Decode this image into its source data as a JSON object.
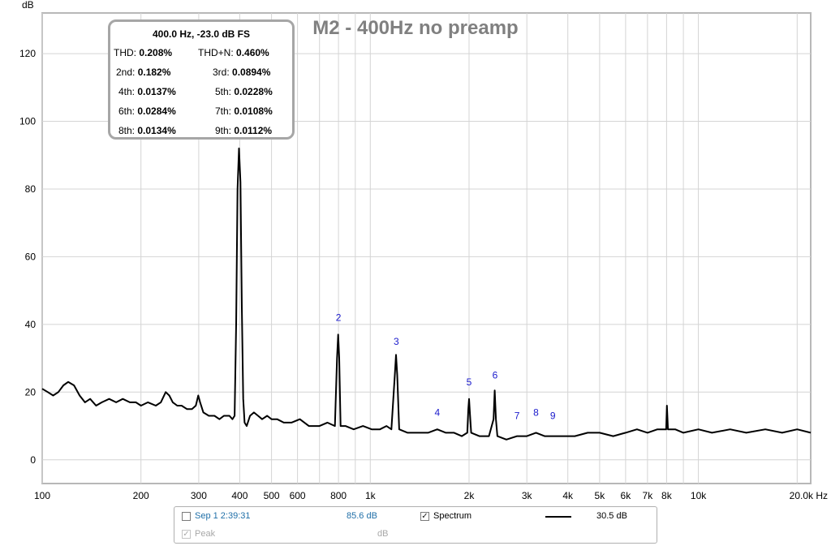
{
  "chart_data": {
    "type": "line",
    "title": "M2 - 400Hz no preamp",
    "ylabel": "dB",
    "x_unit": "Hz",
    "x_scale": "log",
    "xlim": [
      100,
      22000
    ],
    "ylim": [
      -7,
      132
    ],
    "grid": true,
    "y_ticks": [
      "0",
      "20",
      "40",
      "60",
      "80",
      "100",
      "120"
    ],
    "y_tick_values": [
      0,
      20,
      40,
      60,
      80,
      100,
      120
    ],
    "x_ticks": [
      {
        "v": 100,
        "label": "100"
      },
      {
        "v": 200,
        "label": "200"
      },
      {
        "v": 300,
        "label": "300"
      },
      {
        "v": 400,
        "label": "400"
      },
      {
        "v": 500,
        "label": "500"
      },
      {
        "v": 600,
        "label": "600"
      },
      {
        "v": 800,
        "label": "800"
      },
      {
        "v": 1000,
        "label": "1k"
      },
      {
        "v": 2000,
        "label": "2k"
      },
      {
        "v": 3000,
        "label": "3k"
      },
      {
        "v": 4000,
        "label": "4k"
      },
      {
        "v": 5000,
        "label": "5k"
      },
      {
        "v": 6000,
        "label": "6k"
      },
      {
        "v": 7000,
        "label": "7k"
      },
      {
        "v": 8000,
        "label": "8k"
      },
      {
        "v": 10000,
        "label": "10k"
      },
      {
        "v": 20000,
        "label": "20.0k Hz"
      }
    ],
    "x_grid_values": [
      100,
      200,
      300,
      400,
      500,
      600,
      700,
      800,
      900,
      1000,
      2000,
      3000,
      4000,
      5000,
      6000,
      7000,
      8000,
      9000,
      10000,
      20000
    ],
    "series": [
      {
        "color": "#000000",
        "points": [
          [
            100,
            21
          ],
          [
            104,
            20
          ],
          [
            108,
            19
          ],
          [
            112,
            20
          ],
          [
            116,
            22
          ],
          [
            120,
            23
          ],
          [
            125,
            22
          ],
          [
            130,
            19
          ],
          [
            135,
            17
          ],
          [
            140,
            18
          ],
          [
            146,
            16
          ],
          [
            152,
            17
          ],
          [
            160,
            18
          ],
          [
            168,
            17
          ],
          [
            176,
            18
          ],
          [
            185,
            17
          ],
          [
            193,
            17
          ],
          [
            200,
            16
          ],
          [
            210,
            17
          ],
          [
            222,
            16
          ],
          [
            230,
            17
          ],
          [
            238,
            20
          ],
          [
            244,
            19
          ],
          [
            250,
            17
          ],
          [
            258,
            16
          ],
          [
            266,
            16
          ],
          [
            276,
            15
          ],
          [
            286,
            15
          ],
          [
            294,
            16
          ],
          [
            299,
            19
          ],
          [
            303,
            17
          ],
          [
            310,
            14
          ],
          [
            322,
            13
          ],
          [
            335,
            13
          ],
          [
            347,
            12
          ],
          [
            358,
            13
          ],
          [
            372,
            13
          ],
          [
            380,
            12
          ],
          [
            386,
            13
          ],
          [
            390,
            40
          ],
          [
            394,
            80
          ],
          [
            398,
            92
          ],
          [
            402,
            82
          ],
          [
            406,
            45
          ],
          [
            410,
            18
          ],
          [
            414,
            11
          ],
          [
            420,
            10
          ],
          [
            430,
            13
          ],
          [
            442,
            14
          ],
          [
            455,
            13
          ],
          [
            468,
            12
          ],
          [
            485,
            13
          ],
          [
            500,
            12
          ],
          [
            520,
            12
          ],
          [
            545,
            11
          ],
          [
            575,
            11
          ],
          [
            610,
            12
          ],
          [
            650,
            10
          ],
          [
            700,
            10
          ],
          [
            740,
            11
          ],
          [
            780,
            10
          ],
          [
            792,
            30
          ],
          [
            798,
            37
          ],
          [
            804,
            30
          ],
          [
            812,
            10
          ],
          [
            840,
            10
          ],
          [
            890,
            9
          ],
          [
            950,
            10
          ],
          [
            1010,
            9
          ],
          [
            1070,
            9
          ],
          [
            1120,
            10
          ],
          [
            1160,
            9
          ],
          [
            1188,
            25
          ],
          [
            1198,
            31
          ],
          [
            1208,
            25
          ],
          [
            1225,
            9
          ],
          [
            1300,
            8
          ],
          [
            1400,
            8
          ],
          [
            1500,
            8
          ],
          [
            1600,
            9
          ],
          [
            1700,
            8
          ],
          [
            1800,
            8
          ],
          [
            1900,
            7
          ],
          [
            1975,
            8
          ],
          [
            1990,
            15
          ],
          [
            2000,
            18
          ],
          [
            2012,
            14
          ],
          [
            2030,
            8
          ],
          [
            2150,
            7
          ],
          [
            2300,
            7
          ],
          [
            2375,
            12
          ],
          [
            2395,
            20.5
          ],
          [
            2415,
            12
          ],
          [
            2440,
            7
          ],
          [
            2600,
            6
          ],
          [
            2800,
            7
          ],
          [
            3000,
            7
          ],
          [
            3200,
            8
          ],
          [
            3400,
            7
          ],
          [
            3600,
            7
          ],
          [
            3900,
            7
          ],
          [
            4200,
            7
          ],
          [
            4600,
            8
          ],
          [
            5000,
            8
          ],
          [
            5500,
            7
          ],
          [
            6000,
            8
          ],
          [
            6500,
            9
          ],
          [
            7000,
            8
          ],
          [
            7500,
            9
          ],
          [
            7980,
            9
          ],
          [
            8020,
            16
          ],
          [
            8080,
            9
          ],
          [
            8500,
            9
          ],
          [
            9000,
            8
          ],
          [
            10000,
            9
          ],
          [
            11000,
            8
          ],
          [
            12500,
            9
          ],
          [
            14000,
            8
          ],
          [
            16000,
            9
          ],
          [
            18000,
            8
          ],
          [
            20000,
            9
          ],
          [
            22000,
            8
          ]
        ]
      }
    ],
    "harmonic_labels": [
      {
        "label": "2",
        "x": 800,
        "y": 41
      },
      {
        "label": "3",
        "x": 1200,
        "y": 34
      },
      {
        "label": "4",
        "x": 1600,
        "y": 13
      },
      {
        "label": "5",
        "x": 2000,
        "y": 22
      },
      {
        "label": "6",
        "x": 2400,
        "y": 24
      },
      {
        "label": "7",
        "x": 2800,
        "y": 12
      },
      {
        "label": "8",
        "x": 3200,
        "y": 13
      },
      {
        "label": "9",
        "x": 3600,
        "y": 12
      }
    ]
  },
  "stats_box": {
    "header": "400.0 Hz, -23.0 dB FS",
    "thd_label": "THD:",
    "thd_value": "0.208%",
    "thdn_label": "THD+N:",
    "thdn_value": "0.460%",
    "h2_label": "2nd:",
    "h2_value": "0.182%",
    "h3_label": "3rd:",
    "h3_value": "0.0894%",
    "h4_label": "4th:",
    "h4_value": "0.0137%",
    "h5_label": "5th:",
    "h5_value": "0.0228%",
    "h6_label": "6th:",
    "h6_value": "0.0284%",
    "h7_label": "7th:",
    "h7_value": "0.0108%",
    "h8_label": "8th:",
    "h8_value": "0.0134%",
    "h9_label": "9th:",
    "h9_value": "0.0112%"
  },
  "legend": {
    "measurement_name": "Sep 1 2:39:31",
    "measurement_checked": false,
    "measurement_value": "85.6 dB",
    "spectrum_label": "Spectrum",
    "spectrum_checked": true,
    "spectrum_value": "30.5 dB",
    "peak_label": "Peak",
    "peak_checked": true,
    "peak_value": "dB",
    "measurement_color": "#1f6fa8",
    "disabled_color": "#a8a8a8"
  }
}
